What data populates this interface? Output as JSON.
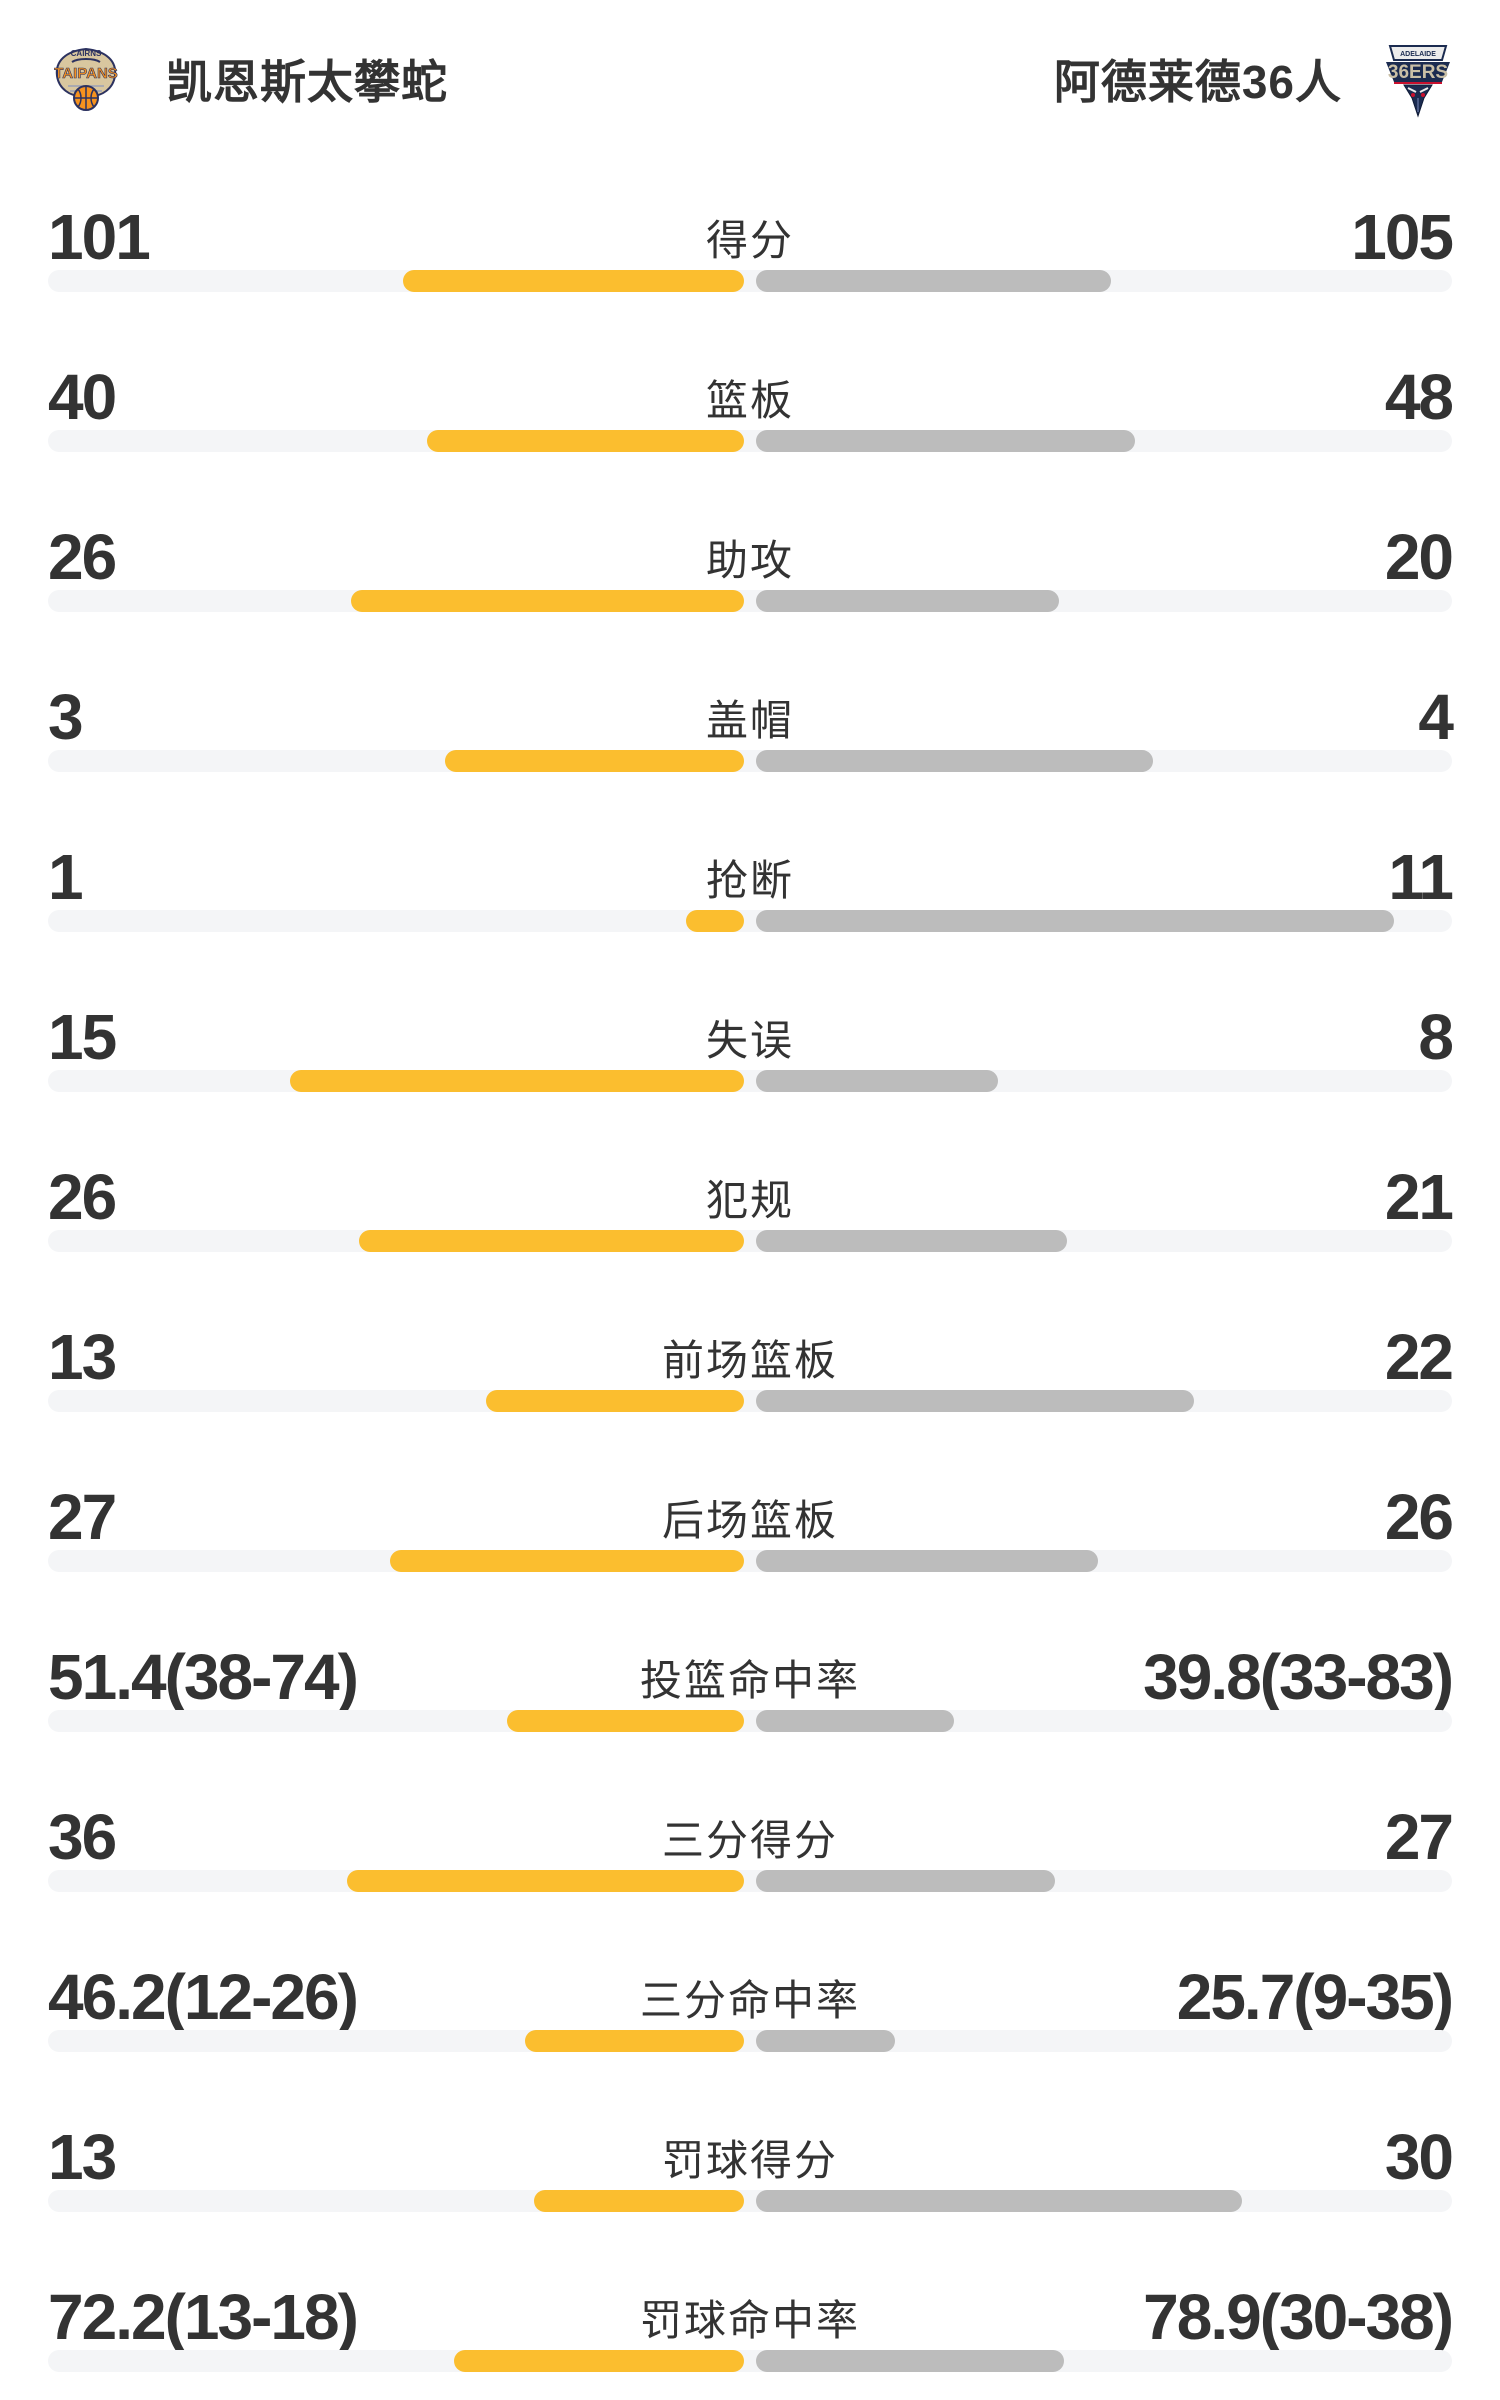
{
  "header": {
    "home_team": {
      "name": "凯恩斯太攀蛇",
      "logo_text_top": "CAIRNS",
      "logo_text_main": "TAIPANS"
    },
    "away_team": {
      "name": "阿德莱德36人",
      "logo_text_top": "ADELAIDE",
      "logo_text_main": "36ERS"
    }
  },
  "colors": {
    "home_bar": "#FBBE2F",
    "away_bar": "#BCBCBC",
    "track": "#F4F5F7",
    "text": "#333333"
  },
  "stats": [
    {
      "label": "得分",
      "home": "101",
      "away": "105",
      "home_bar_pct": 49.0,
      "away_bar_pct": 51.0
    },
    {
      "label": "篮板",
      "home": "40",
      "away": "48",
      "home_bar_pct": 45.5,
      "away_bar_pct": 54.5
    },
    {
      "label": "助攻",
      "home": "26",
      "away": "20",
      "home_bar_pct": 56.5,
      "away_bar_pct": 43.5
    },
    {
      "label": "盖帽",
      "home": "3",
      "away": "4",
      "home_bar_pct": 42.9,
      "away_bar_pct": 57.1
    },
    {
      "label": "抢断",
      "home": "1",
      "away": "11",
      "home_bar_pct": 8.3,
      "away_bar_pct": 91.7
    },
    {
      "label": "失误",
      "home": "15",
      "away": "8",
      "home_bar_pct": 65.2,
      "away_bar_pct": 34.8
    },
    {
      "label": "犯规",
      "home": "26",
      "away": "21",
      "home_bar_pct": 55.3,
      "away_bar_pct": 44.7
    },
    {
      "label": "前场篮板",
      "home": "13",
      "away": "22",
      "home_bar_pct": 37.1,
      "away_bar_pct": 62.9
    },
    {
      "label": "后场篮板",
      "home": "27",
      "away": "26",
      "home_bar_pct": 50.9,
      "away_bar_pct": 49.1
    },
    {
      "label": "投篮命中率",
      "home": "51.4(38-74)",
      "away": "39.8(33-83)",
      "home_bar_pct": 34.0,
      "away_bar_pct": 28.5
    },
    {
      "label": "三分得分",
      "home": "36",
      "away": "27",
      "home_bar_pct": 57.1,
      "away_bar_pct": 42.9
    },
    {
      "label": "三分命中率",
      "home": "46.2(12-26)",
      "away": "25.7(9-35)",
      "home_bar_pct": 31.5,
      "away_bar_pct": 19.9
    },
    {
      "label": "罚球得分",
      "home": "13",
      "away": "30",
      "home_bar_pct": 30.2,
      "away_bar_pct": 69.8
    },
    {
      "label": "罚球命中率",
      "home": "72.2(13-18)",
      "away": "78.9(30-38)",
      "home_bar_pct": 41.6,
      "away_bar_pct": 44.2
    }
  ],
  "chart_data": {
    "type": "bar",
    "title": "凯恩斯太攀蛇 vs 阿德莱德36人",
    "categories": [
      "得分",
      "篮板",
      "助攻",
      "盖帽",
      "抢断",
      "失误",
      "犯规",
      "前场篮板",
      "后场篮板",
      "投篮命中率",
      "三分得分",
      "三分命中率",
      "罚球得分",
      "罚球命中率"
    ],
    "series": [
      {
        "name": "凯恩斯太攀蛇",
        "values": [
          101,
          40,
          26,
          3,
          1,
          15,
          26,
          13,
          27,
          51.4,
          36,
          46.2,
          13,
          72.2
        ]
      },
      {
        "name": "阿德莱德36人",
        "values": [
          105,
          48,
          20,
          4,
          11,
          8,
          21,
          22,
          26,
          39.8,
          27,
          25.7,
          30,
          78.9
        ]
      }
    ],
    "annotations": {
      "投篮命中率": {
        "home_made_att": "38-74",
        "away_made_att": "33-83"
      },
      "三分命中率": {
        "home_made_att": "12-26",
        "away_made_att": "9-35"
      },
      "罚球命中率": {
        "home_made_att": "13-18",
        "away_made_att": "30-38"
      }
    },
    "legend_position": "header",
    "grid": false
  }
}
